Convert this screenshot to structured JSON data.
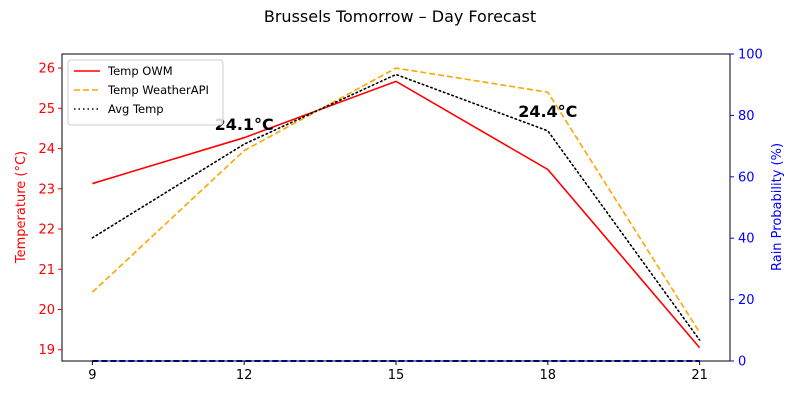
{
  "chart_data": {
    "type": "line",
    "title": "Brussels Tomorrow – Day Forecast",
    "x": [
      9,
      12,
      15,
      18,
      21
    ],
    "xticks": [
      "9",
      "12",
      "15",
      "18",
      "21"
    ],
    "xlim": [
      8.4,
      21.6
    ],
    "ylabel": "Temperature (°C)",
    "ylim": [
      18.72,
      26.35
    ],
    "yticks": [
      "19",
      "20",
      "21",
      "22",
      "23",
      "24",
      "25",
      "26"
    ],
    "y2label": "Rain Probability (%)",
    "y2lim": [
      0,
      100
    ],
    "y2ticks": [
      "0",
      "20",
      "40",
      "60",
      "80",
      "100"
    ],
    "grid": false,
    "legend": "top-left",
    "series": [
      {
        "name": "Temp OWM",
        "axis": "left",
        "color": "#ff0000",
        "style": "solid",
        "values": [
          23.13,
          24.27,
          25.67,
          23.48,
          19.05
        ]
      },
      {
        "name": "Temp WeatherAPI",
        "axis": "left",
        "color": "#ffa500",
        "style": "dashed",
        "values": [
          20.43,
          23.95,
          26.0,
          25.4,
          19.43
        ]
      },
      {
        "name": "Avg Temp",
        "axis": "left",
        "color": "#000000",
        "style": "dotted",
        "values": [
          21.78,
          24.11,
          25.84,
          24.44,
          19.24
        ]
      },
      {
        "name": "",
        "axis": "right",
        "color": "#0000ff",
        "style": "dashed",
        "values": [
          0,
          0,
          0,
          0,
          0
        ]
      }
    ],
    "annotations": [
      {
        "x": 12,
        "y": 24.11,
        "text": "24.1°C"
      },
      {
        "x": 18,
        "y": 24.44,
        "text": "24.4°C"
      }
    ]
  }
}
